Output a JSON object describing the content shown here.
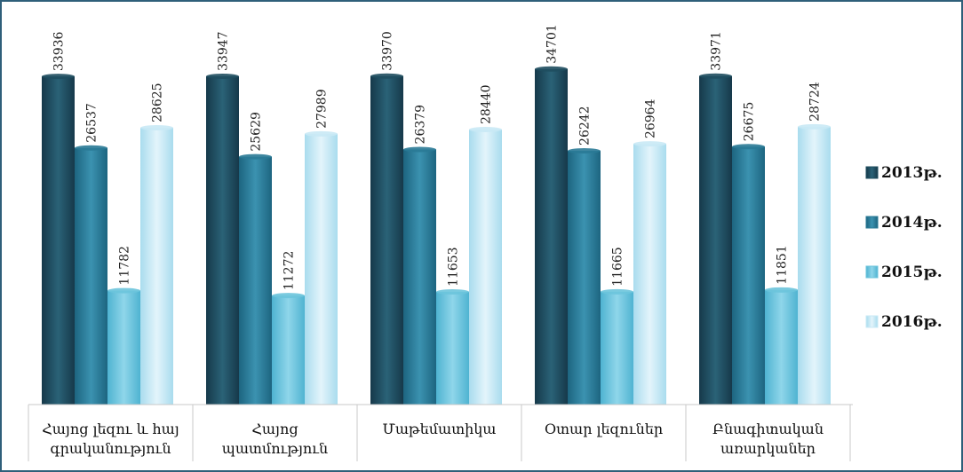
{
  "chart_data": {
    "type": "bar",
    "categories": [
      [
        "Հայոց լեզու և հայ",
        "գրականություն"
      ],
      [
        "Հայոց",
        "պատմություն"
      ],
      [
        "Մաթեմատիկա"
      ],
      [
        "Օտար լեզուներ"
      ],
      [
        "Բնագիտական",
        "առարկաներ"
      ]
    ],
    "series": [
      {
        "name": "2013թ.",
        "color": "#1f4e5f",
        "values": [
          33936,
          33947,
          33970,
          34701,
          33971
        ]
      },
      {
        "name": "2014թ.",
        "color": "#2a7a96",
        "values": [
          26537,
          25629,
          26379,
          26242,
          26675
        ]
      },
      {
        "name": "2015թ.",
        "color": "#6cc4dc",
        "values": [
          11782,
          11272,
          11653,
          11665,
          11851
        ]
      },
      {
        "name": "2016թ.",
        "color": "#c9e9f5",
        "values": [
          28625,
          27989,
          28440,
          26964,
          28724
        ]
      }
    ],
    "ylim": [
      0,
      40000
    ],
    "legend_position": "right",
    "grid": false
  }
}
